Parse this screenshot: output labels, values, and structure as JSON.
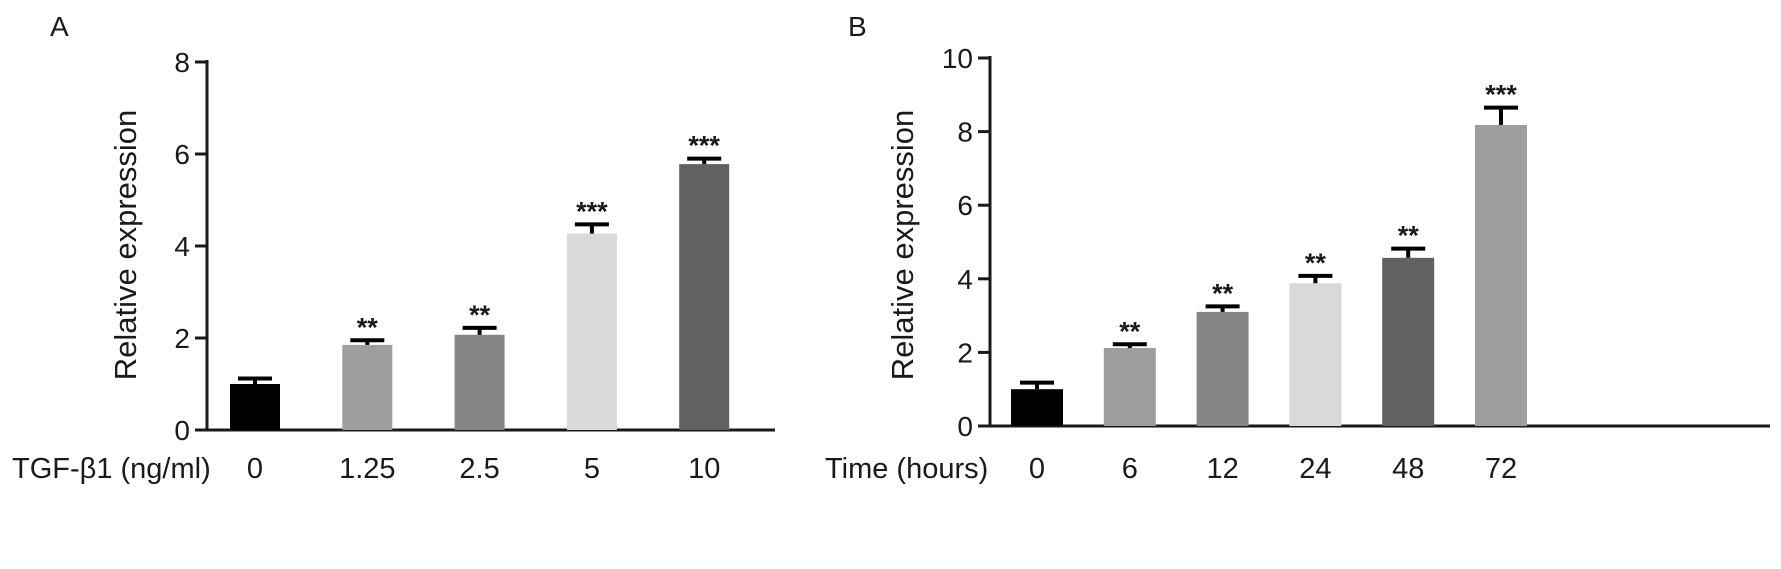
{
  "chart_data": [
    {
      "panel_label": "A",
      "type": "bar",
      "xlabel": "TGF-β1 (ng/ml)",
      "ylabel": "Relative expression",
      "ylim": [
        0,
        8
      ],
      "yticks": [
        "0",
        "2",
        "4",
        "6",
        "8"
      ],
      "categories": [
        "0",
        "1.25",
        "2.5",
        "5",
        "10"
      ],
      "values": [
        1.0,
        1.85,
        2.07,
        4.27,
        5.78
      ],
      "errors": [
        0.12,
        0.1,
        0.15,
        0.2,
        0.12
      ],
      "significance": [
        "",
        "**",
        "**",
        "***",
        "***"
      ],
      "colors": [
        "#000000",
        "#9e9e9e",
        "#858585",
        "#d9d9d9",
        "#616161"
      ],
      "grid": false,
      "legend": "none"
    },
    {
      "panel_label": "B",
      "type": "bar",
      "xlabel": "Time (hours)",
      "ylabel": "Relative expression",
      "ylim": [
        0,
        10
      ],
      "yticks": [
        "0",
        "2",
        "4",
        "6",
        "8",
        "10"
      ],
      "categories": [
        "0",
        "6",
        "12",
        "24",
        "48",
        "72"
      ],
      "values": [
        1.0,
        2.12,
        3.1,
        3.88,
        4.57,
        8.18
      ],
      "errors": [
        0.18,
        0.1,
        0.15,
        0.2,
        0.25,
        0.47
      ],
      "significance": [
        "",
        "**",
        "**",
        "**",
        "**",
        "***"
      ],
      "colors": [
        "#000000",
        "#9e9e9e",
        "#858585",
        "#d9d9d9",
        "#616161",
        "#9e9e9e"
      ],
      "grid": false,
      "legend": "none"
    }
  ]
}
